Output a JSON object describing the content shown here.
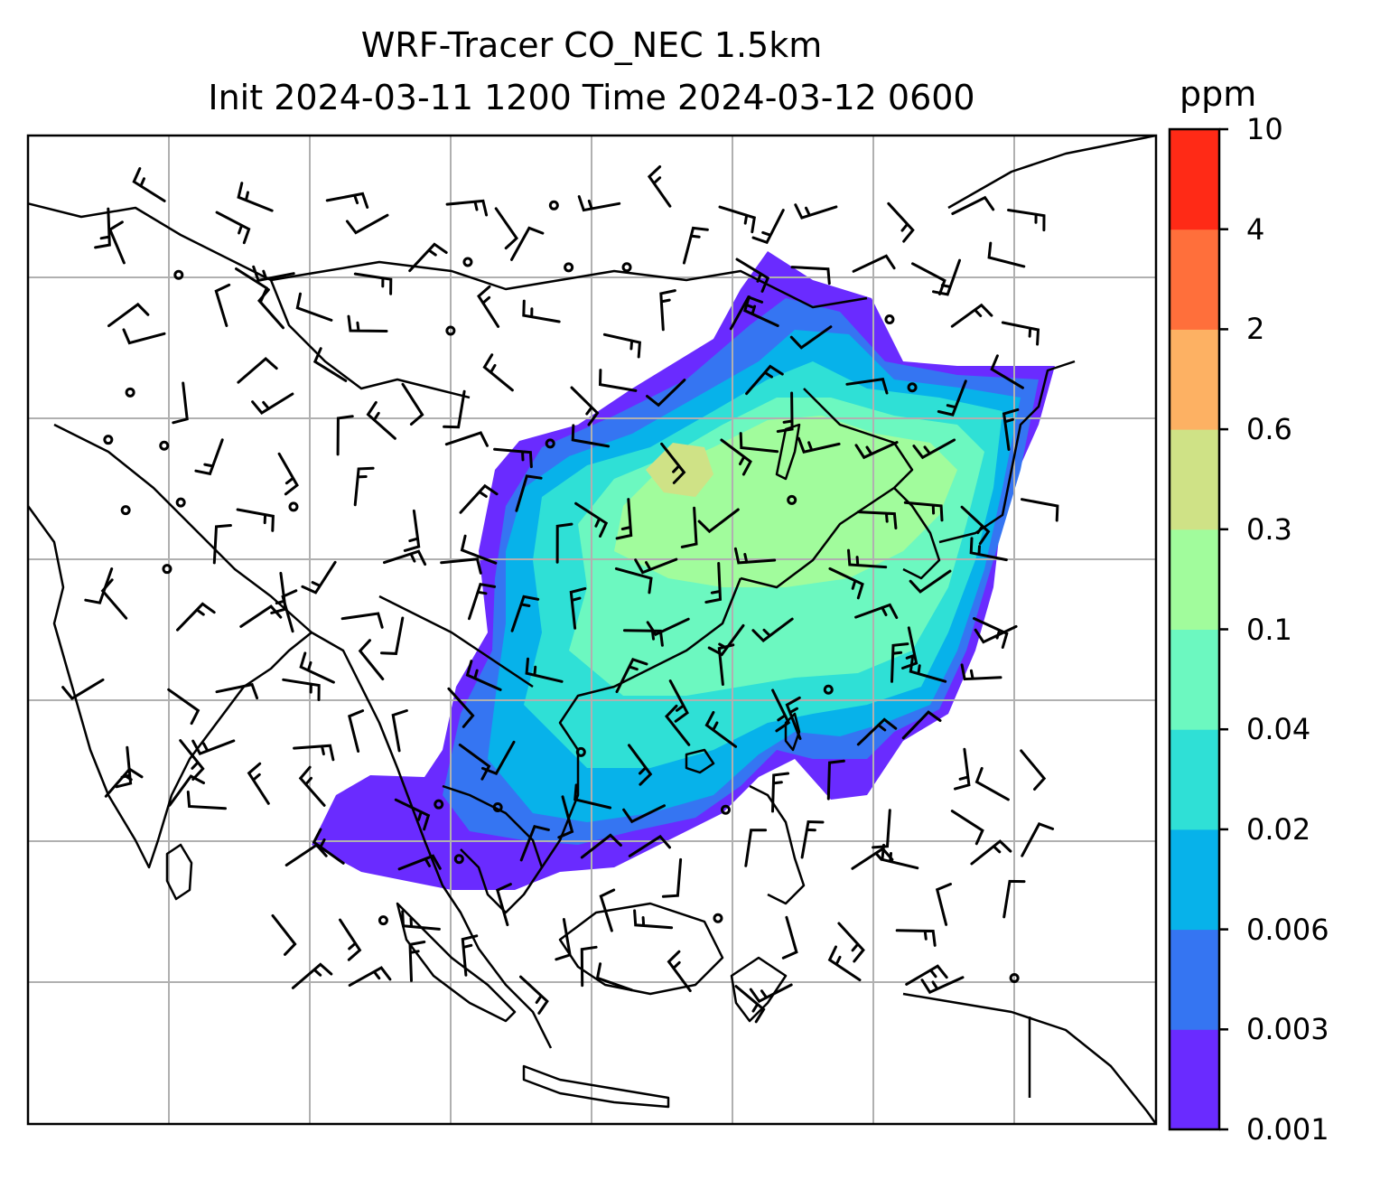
{
  "title_line1": "WRF-Tracer CO_NEC 1.5km",
  "title_line2": "Init 2024-03-11 1200 Time 2024-03-12 0600",
  "colorbar": {
    "unit": "ppm",
    "tick_labels": [
      "0.001",
      "0.003",
      "0.006",
      "0.02",
      "0.04",
      "0.1",
      "0.3",
      "0.6",
      "2",
      "4",
      "10"
    ],
    "colors": [
      "#6a2bff",
      "#3575f2",
      "#07b2ea",
      "#2fe0d6",
      "#6cf8c0",
      "#a1fc9c",
      "#cfe286",
      "#fdb163",
      "#ff6f3b",
      "#ff2a16"
    ]
  },
  "map": {
    "field": "CO tracer concentration at 1.5km",
    "gridlines": true,
    "coastlines": true,
    "wind_barbs": true,
    "coast_color": "#000000",
    "grid_color": "#b0b0b0"
  }
}
